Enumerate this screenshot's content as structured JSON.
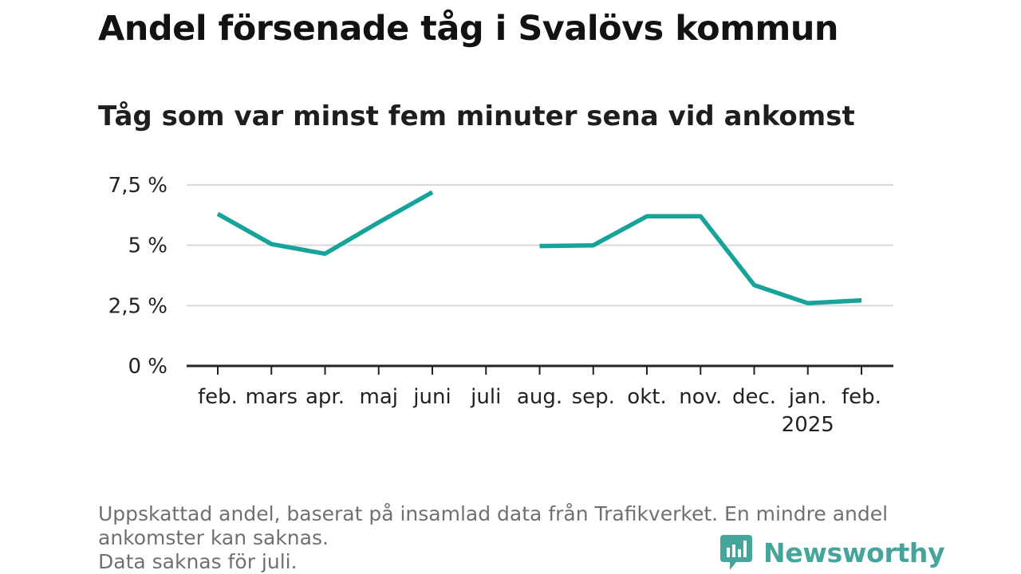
{
  "chart_data": {
    "type": "line",
    "title": "Andel försenade tåg i Svalövs kommun",
    "subtitle": "Tåg som var minst fem minuter sena vid ankomst",
    "categories": [
      "feb.",
      "mars",
      "apr.",
      "maj",
      "juni",
      "juli",
      "aug.",
      "sep.",
      "okt.",
      "nov.",
      "dec.",
      "jan.",
      "feb."
    ],
    "category_sublabels": [
      "",
      "",
      "",
      "",
      "",
      "",
      "",
      "",
      "",
      "",
      "",
      "2025",
      ""
    ],
    "series": [
      {
        "values": [
          6.3,
          5.05,
          4.65,
          5.95,
          7.2,
          null,
          4.97,
          5.0,
          6.2,
          6.2,
          3.35,
          2.6,
          2.72
        ],
        "color": "#15a39a"
      }
    ],
    "yticks": [
      0,
      2.5,
      5,
      7.5
    ],
    "ytick_labels": [
      "0 %",
      "2,5 %",
      "5 %",
      "7,5 %"
    ],
    "ylim": [
      0,
      7.5
    ],
    "grid": true,
    "xlabel": "",
    "ylabel": ""
  },
  "footnote": {
    "line1": "Uppskattad andel, baserat på insamlad data från Trafikverket. En mindre andel",
    "line2": "ankomster kan saknas.",
    "line3": "Data saknas för juli."
  },
  "brand": {
    "name": "Newsworthy",
    "icon": "newsworthy-logo-icon",
    "color": "#46a59b"
  }
}
